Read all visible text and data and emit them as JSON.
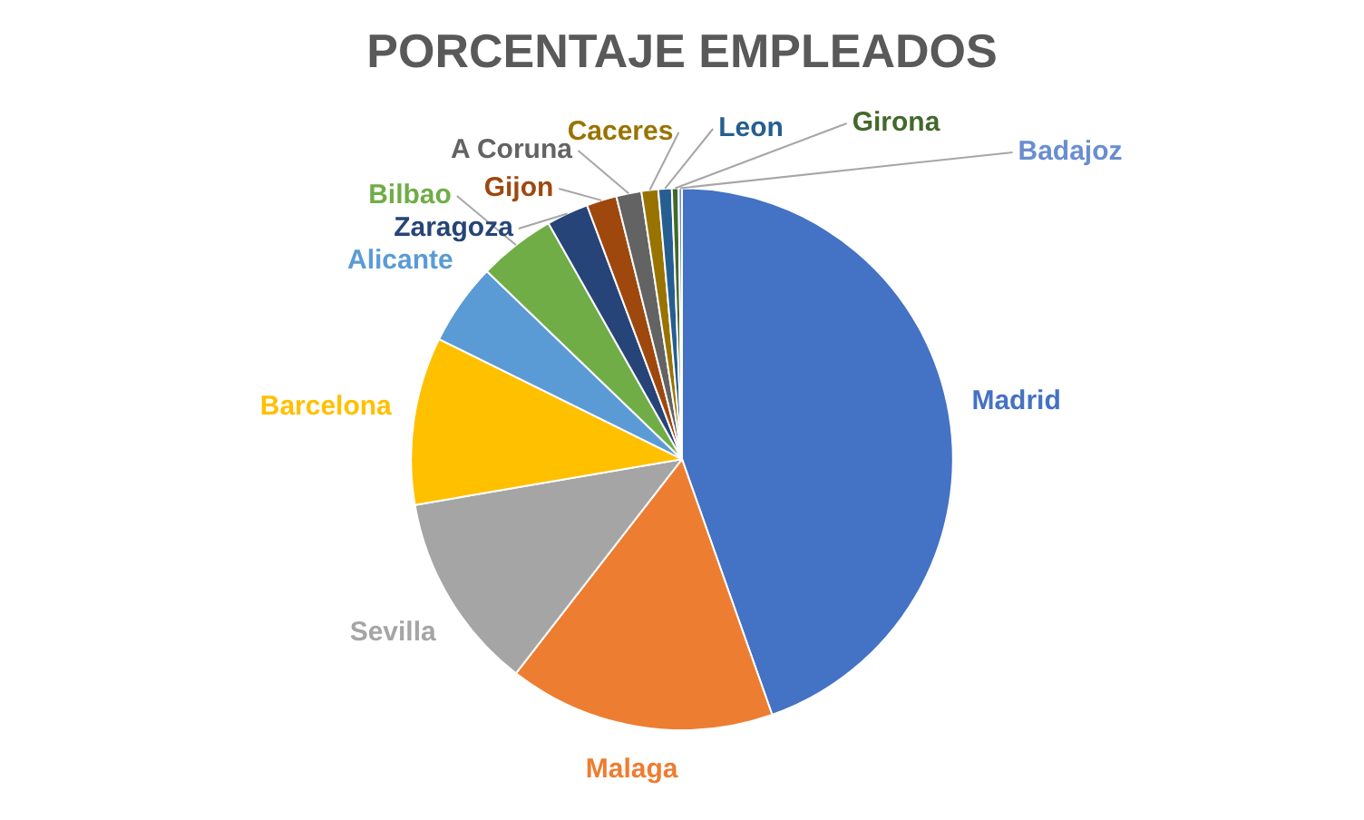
{
  "chart_data": {
    "type": "pie",
    "title": "PORCENTAJE EMPLEADOS",
    "categories": [
      "Madrid",
      "Malaga",
      "Sevilla",
      "Barcelona",
      "Alicante",
      "Bilbao",
      "Zaragoza",
      "Gijon",
      "A Coruna",
      "Caceres",
      "Leon",
      "Girona",
      "Badajoz"
    ],
    "values": [
      44.6,
      15.9,
      11.8,
      10,
      4.9,
      4.6,
      2.5,
      1.8,
      1.5,
      1,
      0.8,
      0.4,
      0.2
    ],
    "colors": [
      "#4472c4",
      "#ed7d31",
      "#a5a5a5",
      "#ffc000",
      "#5b9bd5",
      "#70ad47",
      "#264478",
      "#9e480e",
      "#636363",
      "#997300",
      "#255e91",
      "#43682b",
      "#698ed0"
    ],
    "legend": false
  }
}
